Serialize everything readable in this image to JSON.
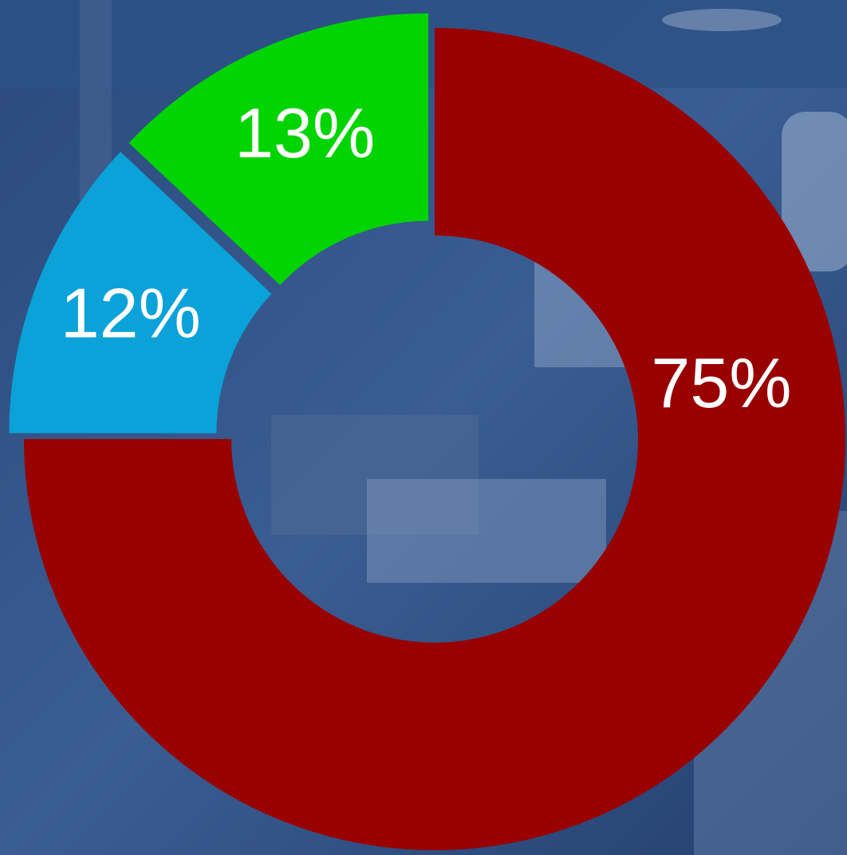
{
  "chart_data": {
    "type": "donut",
    "categories": [
      null,
      null,
      null
    ],
    "values": [
      75,
      12,
      13
    ],
    "value_labels": [
      "75%",
      "12%",
      "13%"
    ],
    "colors": [
      "#990000",
      "#0aa2d8",
      "#02d402"
    ]
  }
}
